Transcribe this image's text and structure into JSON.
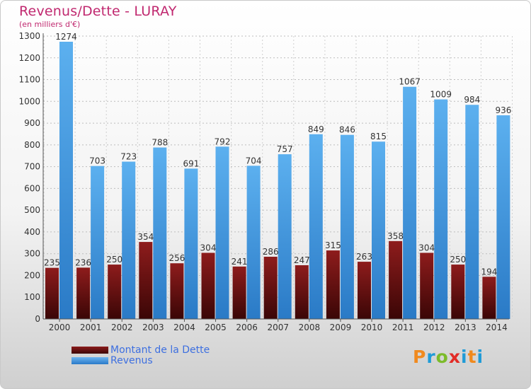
{
  "title": "Revenus/Dette - LURAY",
  "subtitle": "(en milliers d'€)",
  "legend": {
    "dette": "Montant de la Dette",
    "revenus": "Revenus"
  },
  "logo": "Proxiti",
  "colors": {
    "dette": "#6e1010",
    "revenus": "#4aa2e6",
    "title": "#c0286f",
    "legend_text": "#3d6fe0"
  },
  "chart_data": {
    "type": "bar",
    "title": "Revenus/Dette - LURAY",
    "subtitle": "(en milliers d'€)",
    "categories": [
      "2000",
      "2001",
      "2002",
      "2003",
      "2004",
      "2005",
      "2006",
      "2007",
      "2008",
      "2009",
      "2010",
      "2011",
      "2012",
      "2013",
      "2014"
    ],
    "series": [
      {
        "name": "Montant de la Dette",
        "values": [
          235,
          236,
          250,
          354,
          256,
          304,
          241,
          286,
          247,
          315,
          263,
          358,
          304,
          250,
          194
        ]
      },
      {
        "name": "Revenus",
        "values": [
          1274,
          703,
          723,
          788,
          691,
          792,
          704,
          757,
          849,
          846,
          815,
          1067,
          1009,
          984,
          936
        ]
      }
    ],
    "ylim": [
      0,
      1300
    ],
    "yticks": [
      0,
      100,
      200,
      300,
      400,
      500,
      600,
      700,
      800,
      900,
      1000,
      1100,
      1200,
      1300
    ],
    "grid": true,
    "legend_position": "bottom-left"
  }
}
